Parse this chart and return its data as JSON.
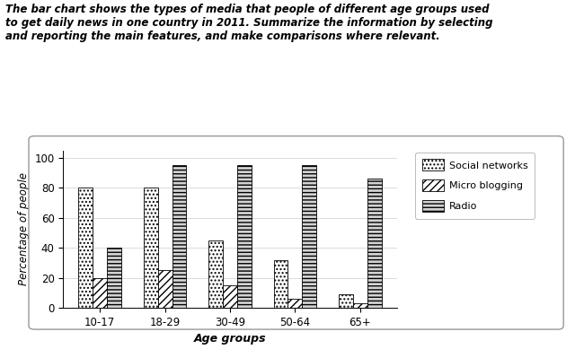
{
  "age_groups": [
    "10-17",
    "18-29",
    "30-49",
    "50-64",
    "65+"
  ],
  "social_networks": [
    80,
    80,
    45,
    32,
    9
  ],
  "micro_blogging": [
    20,
    25,
    15,
    6,
    3
  ],
  "radio": [
    40,
    95,
    95,
    95,
    86
  ],
  "ylabel": "Percentage of people",
  "xlabel": "Age groups",
  "ylim": [
    0,
    105
  ],
  "yticks": [
    0,
    20,
    40,
    60,
    80,
    100
  ],
  "title_text": "The bar chart shows the types of media that people of different age groups used\nto get daily news in one country in 2011. Summarize the information by selecting\nand reporting the main features, and make comparisons where relevant.",
  "legend_labels": [
    "Micro blogging",
    "Radio",
    "Social networks"
  ],
  "bar_width": 0.22,
  "background_color": "#ffffff"
}
